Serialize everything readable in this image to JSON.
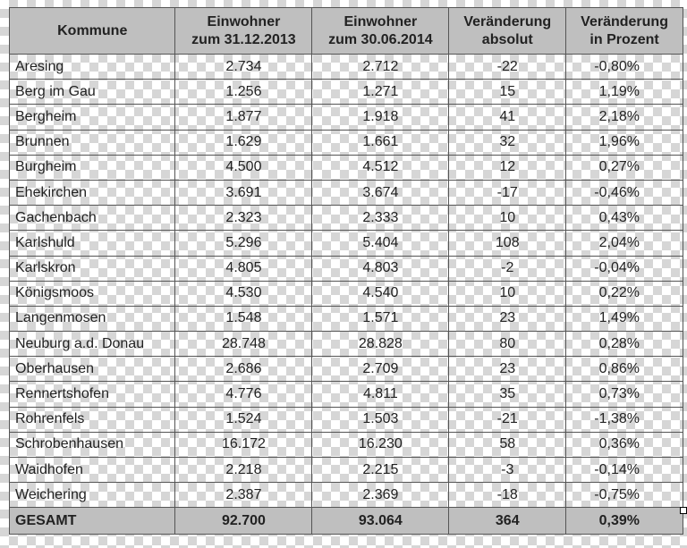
{
  "headers": [
    "Kommune",
    "Einwohner zum 31.12.2013",
    "Einwohner zum 30.06.2014",
    "Veränderung absolut",
    "Veränderung in Prozent"
  ],
  "header_lines": [
    [
      "Kommune"
    ],
    [
      "Einwohner",
      "zum 31.12.2013"
    ],
    [
      "Einwohner",
      "zum 30.06.2014"
    ],
    [
      "Veränderung",
      "absolut"
    ],
    [
      "Veränderung",
      "in Prozent"
    ]
  ],
  "rows": [
    [
      "Aresing",
      "2.734",
      "2.712",
      "-22",
      "-0,80%"
    ],
    [
      "Berg im Gau",
      "1.256",
      "1.271",
      "15",
      "1,19%"
    ],
    [
      "Bergheim",
      "1.877",
      "1.918",
      "41",
      "2,18%"
    ],
    [
      "Brunnen",
      "1.629",
      "1.661",
      "32",
      "1,96%"
    ],
    [
      "Burgheim",
      "4.500",
      "4.512",
      "12",
      "0,27%"
    ],
    [
      "Ehekirchen",
      "3.691",
      "3.674",
      "-17",
      "-0,46%"
    ],
    [
      "Gachenbach",
      "2.323",
      "2.333",
      "10",
      "0,43%"
    ],
    [
      "Karlshuld",
      "5.296",
      "5.404",
      "108",
      "2,04%"
    ],
    [
      "Karlskron",
      "4.805",
      "4.803",
      "-2",
      "-0,04%"
    ],
    [
      "Königsmoos",
      "4.530",
      "4.540",
      "10",
      "0,22%"
    ],
    [
      "Langenmosen",
      "1.548",
      "1.571",
      "23",
      "1,49%"
    ],
    [
      "Neuburg a.d. Donau",
      "28.748",
      "28.828",
      "80",
      "0,28%"
    ],
    [
      "Oberhausen",
      "2.686",
      "2.709",
      "23",
      "0,86%"
    ],
    [
      "Rennertshofen",
      "4.776",
      "4.811",
      "35",
      "0,73%"
    ],
    [
      "Rohrenfels",
      "1.524",
      "1.503",
      "-21",
      "-1,38%"
    ],
    [
      "Schrobenhausen",
      "16.172",
      "16.230",
      "58",
      "0,36%"
    ],
    [
      "Waidhofen",
      "2.218",
      "2.215",
      "-3",
      "-0,14%"
    ],
    [
      "Weichering",
      "2.387",
      "2.369",
      "-18",
      "-0,75%"
    ]
  ],
  "total": [
    "GESAMT",
    "92.700",
    "93.064",
    "364",
    "0,39%"
  ]
}
